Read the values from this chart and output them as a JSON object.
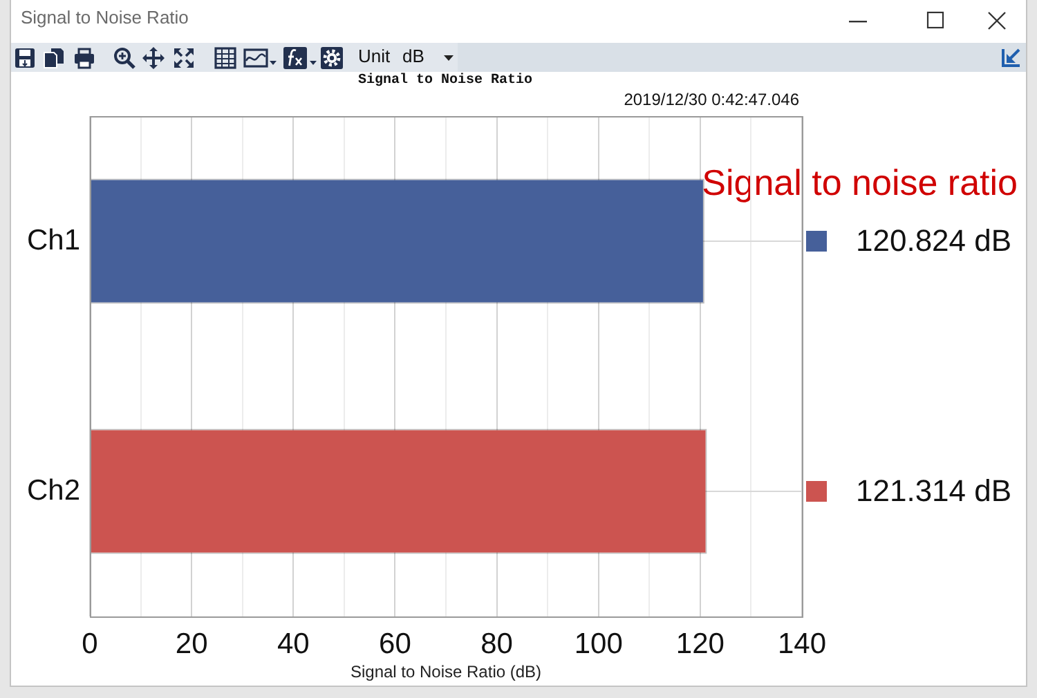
{
  "chart_data": {
    "type": "bar",
    "orientation": "horizontal",
    "title": "Signal to Noise Ratio",
    "xlabel": "Signal to Noise Ratio (dB)",
    "categories": [
      "Ch1",
      "Ch2"
    ],
    "values": [
      120.824,
      121.314
    ],
    "colors": [
      "#46609a",
      "#cc5450"
    ],
    "value_labels": [
      "120.824 dB",
      "121.314 dB"
    ],
    "xlim": [
      0,
      140
    ],
    "xticks": [
      0,
      {
        "value": 10,
        "label": null
      },
      20,
      {
        "value": 30,
        "label": null
      },
      40,
      {
        "value": 50,
        "label": null
      },
      60,
      {
        "value": 70,
        "label": null
      },
      80,
      {
        "value": 90,
        "label": null
      },
      100,
      {
        "value": 110,
        "label": null
      },
      120,
      {
        "value": 130,
        "label": null
      },
      140
    ],
    "grid": true,
    "annotations": [
      "Signal to Noise Ratio",
      "Unit",
      "dB",
      "2019/12/30 0:42:47.046",
      "Signal to noise ratio"
    ]
  }
}
